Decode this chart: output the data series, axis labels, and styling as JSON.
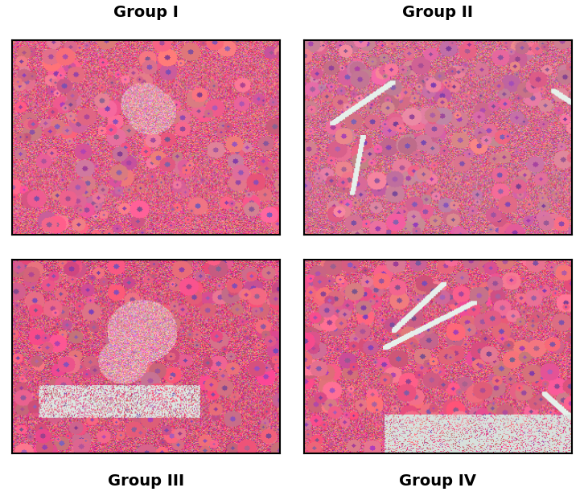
{
  "labels_top": [
    "Group I",
    "Group II"
  ],
  "labels_bottom": [
    "Group III",
    "Group IV"
  ],
  "label_fontsize": 14,
  "label_fontweight": "bold",
  "bg_color": "#ffffff",
  "panel_colors": [
    {
      "base": [
        220,
        100,
        130
      ],
      "variation": 60
    },
    {
      "base": [
        210,
        110,
        140
      ],
      "variation": 55
    },
    {
      "base": [
        215,
        90,
        120
      ],
      "variation": 65
    },
    {
      "base": [
        218,
        95,
        125
      ],
      "variation": 62
    }
  ],
  "figsize": [
    7.26,
    6.27
  ],
  "dpi": 100
}
